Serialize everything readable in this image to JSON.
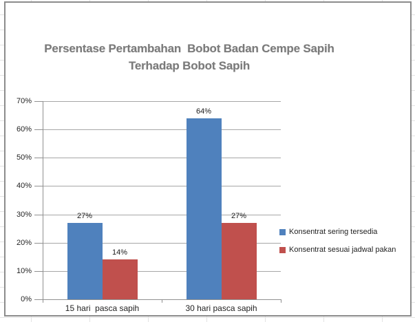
{
  "chart_data": {
    "type": "bar",
    "title": "Persentase Pertambahan  Bobot Badan Cempe Sapih Terhadap Bobot Sapih",
    "title_lines": [
      "Persentase Pertambahan  Bobot Badan Cempe Sapih",
      "Terhadap Bobot Sapih"
    ],
    "title_color": "#7A7A7A",
    "categories": [
      "15 hari  pasca sapih",
      "30 hari pasca sapih"
    ],
    "series": [
      {
        "name": "Konsentrat sering tersedia",
        "color": "#4F81BD",
        "values": [
          27,
          64
        ]
      },
      {
        "name": "Konsentrat sesuai jadwal pakan",
        "color": "#C0504D",
        "values": [
          14,
          27
        ]
      }
    ],
    "data_labels": [
      [
        "27%",
        "64%"
      ],
      [
        "14%",
        "27%"
      ]
    ],
    "xlabel": "",
    "ylabel": "",
    "ylim": [
      0,
      70
    ],
    "y_tick_step": 10,
    "y_tick_labels": [
      "0%",
      "10%",
      "20%",
      "30%",
      "40%",
      "50%",
      "60%",
      "70%"
    ],
    "grid": true,
    "legend_position": "middle-right",
    "gridline_color": "#A6A6A6",
    "axis_color": "#8F8F8F",
    "chart_border_color": "#8B8B8B"
  }
}
